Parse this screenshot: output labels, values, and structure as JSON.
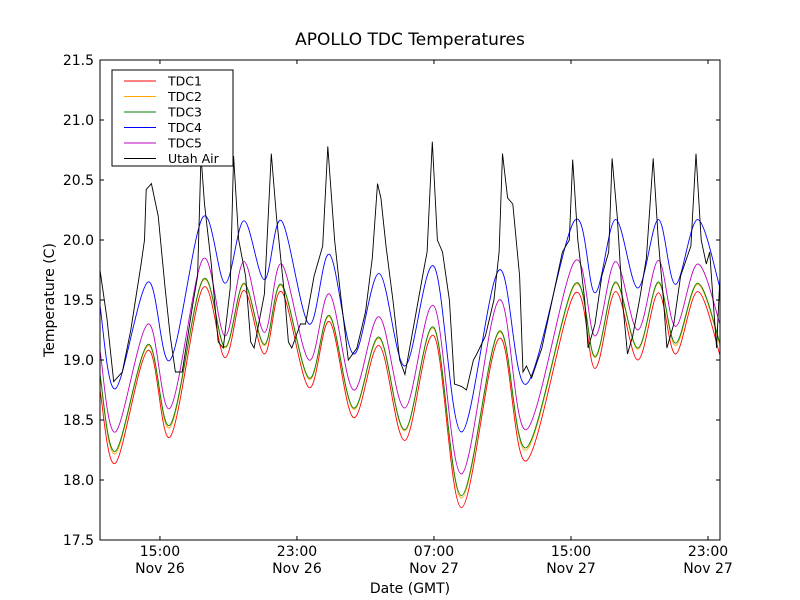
{
  "chart_data": {
    "type": "line",
    "title": "APOLLO TDC Temperatures",
    "xlabel": "Date (GMT)",
    "ylabel": "Temperature (C)",
    "x_units": "hours since Nov 26 00:00 GMT",
    "xlim": [
      11.5,
      47.7
    ],
    "ylim": [
      17.5,
      21.5
    ],
    "grid": false,
    "legend_position": "top-left",
    "yticks": [
      17.5,
      18.0,
      18.5,
      19.0,
      19.5,
      20.0,
      20.5,
      21.0,
      21.5
    ],
    "ytick_labels": [
      "17.5",
      "18.0",
      "18.5",
      "19.0",
      "19.5",
      "20.0",
      "20.5",
      "21.0",
      "21.5"
    ],
    "xticks": [
      15,
      23,
      31,
      39,
      47
    ],
    "xtick_labels": [
      {
        "time": "15:00",
        "date": "Nov 26"
      },
      {
        "time": "23:00",
        "date": "Nov 26"
      },
      {
        "time": "07:00",
        "date": "Nov 27"
      },
      {
        "time": "15:00",
        "date": "Nov 27"
      },
      {
        "time": "23:00",
        "date": "Nov 27"
      }
    ],
    "series": [
      {
        "name": "TDC1",
        "color": "#ff0000",
        "points": [
          [
            11.5,
            18.75
          ],
          [
            12.4,
            18.14
          ],
          [
            14.3,
            19.08
          ],
          [
            15.6,
            18.36
          ],
          [
            17.5,
            19.6
          ],
          [
            18.8,
            19.02
          ],
          [
            19.9,
            19.58
          ],
          [
            21.1,
            19.05
          ],
          [
            22.1,
            19.57
          ],
          [
            23.7,
            18.77
          ],
          [
            24.9,
            19.32
          ],
          [
            26.3,
            18.52
          ],
          [
            27.8,
            19.12
          ],
          [
            29.3,
            18.33
          ],
          [
            31.0,
            19.2
          ],
          [
            32.6,
            17.77
          ],
          [
            34.8,
            19.18
          ],
          [
            36.4,
            18.16
          ],
          [
            39.2,
            19.55
          ],
          [
            40.4,
            18.93
          ],
          [
            41.6,
            19.57
          ],
          [
            42.9,
            19.0
          ],
          [
            44.1,
            19.56
          ],
          [
            45.1,
            19.05
          ],
          [
            46.4,
            19.57
          ],
          [
            47.7,
            19.04
          ]
        ]
      },
      {
        "name": "TDC2",
        "color": "#ffa500",
        "points": [
          [
            11.5,
            18.86
          ],
          [
            12.4,
            18.22
          ],
          [
            14.3,
            19.12
          ],
          [
            15.6,
            18.44
          ],
          [
            17.5,
            19.66
          ],
          [
            18.8,
            19.1
          ],
          [
            19.9,
            19.63
          ],
          [
            21.1,
            19.12
          ],
          [
            22.1,
            19.62
          ],
          [
            23.7,
            18.84
          ],
          [
            24.9,
            19.36
          ],
          [
            26.3,
            18.59
          ],
          [
            27.8,
            19.18
          ],
          [
            29.3,
            18.41
          ],
          [
            31.0,
            19.26
          ],
          [
            32.6,
            17.85
          ],
          [
            34.8,
            19.23
          ],
          [
            36.4,
            18.25
          ],
          [
            39.2,
            19.62
          ],
          [
            40.4,
            19.02
          ],
          [
            41.6,
            19.64
          ],
          [
            42.9,
            19.09
          ],
          [
            44.1,
            19.64
          ],
          [
            45.1,
            19.12
          ],
          [
            46.4,
            19.63
          ],
          [
            47.7,
            19.12
          ]
        ]
      },
      {
        "name": "TDC3",
        "color": "#008000",
        "points": [
          [
            11.5,
            18.88
          ],
          [
            12.4,
            18.24
          ],
          [
            14.3,
            19.13
          ],
          [
            15.6,
            18.46
          ],
          [
            17.5,
            19.67
          ],
          [
            18.8,
            19.11
          ],
          [
            19.9,
            19.64
          ],
          [
            21.1,
            19.13
          ],
          [
            22.1,
            19.63
          ],
          [
            23.7,
            18.85
          ],
          [
            24.9,
            19.37
          ],
          [
            26.3,
            18.6
          ],
          [
            27.8,
            19.19
          ],
          [
            29.3,
            18.42
          ],
          [
            31.0,
            19.27
          ],
          [
            32.6,
            17.87
          ],
          [
            34.8,
            19.24
          ],
          [
            36.4,
            18.27
          ],
          [
            39.2,
            19.63
          ],
          [
            40.4,
            19.03
          ],
          [
            41.6,
            19.65
          ],
          [
            42.9,
            19.1
          ],
          [
            44.1,
            19.65
          ],
          [
            45.1,
            19.14
          ],
          [
            46.4,
            19.64
          ],
          [
            47.7,
            19.14
          ]
        ]
      },
      {
        "name": "TDC4",
        "color": "#0000ff",
        "points": [
          [
            11.5,
            19.45
          ],
          [
            12.4,
            18.76
          ],
          [
            14.3,
            19.65
          ],
          [
            15.6,
            19.0
          ],
          [
            17.5,
            20.19
          ],
          [
            18.8,
            19.64
          ],
          [
            19.9,
            20.16
          ],
          [
            21.1,
            19.67
          ],
          [
            22.1,
            20.16
          ],
          [
            23.7,
            19.3
          ],
          [
            24.9,
            19.88
          ],
          [
            26.3,
            19.05
          ],
          [
            27.8,
            19.72
          ],
          [
            29.3,
            18.95
          ],
          [
            31.0,
            19.78
          ],
          [
            32.6,
            18.4
          ],
          [
            34.8,
            19.75
          ],
          [
            36.4,
            18.8
          ],
          [
            39.2,
            20.16
          ],
          [
            40.4,
            19.56
          ],
          [
            41.6,
            20.17
          ],
          [
            42.9,
            19.6
          ],
          [
            44.1,
            20.17
          ],
          [
            45.1,
            19.63
          ],
          [
            46.4,
            20.17
          ],
          [
            47.7,
            19.6
          ]
        ]
      },
      {
        "name": "TDC5",
        "color": "#bf00bf",
        "points": [
          [
            11.5,
            19.08
          ],
          [
            12.4,
            18.4
          ],
          [
            14.3,
            19.3
          ],
          [
            15.6,
            18.6
          ],
          [
            17.5,
            19.84
          ],
          [
            18.8,
            19.2
          ],
          [
            19.9,
            19.82
          ],
          [
            21.1,
            19.23
          ],
          [
            22.1,
            19.8
          ],
          [
            23.7,
            19.0
          ],
          [
            24.9,
            19.55
          ],
          [
            26.3,
            18.75
          ],
          [
            27.8,
            19.36
          ],
          [
            29.3,
            18.6
          ],
          [
            31.0,
            19.45
          ],
          [
            32.6,
            18.05
          ],
          [
            34.8,
            19.5
          ],
          [
            36.4,
            18.42
          ],
          [
            39.2,
            19.82
          ],
          [
            40.4,
            19.2
          ],
          [
            41.6,
            19.82
          ],
          [
            42.9,
            19.25
          ],
          [
            44.1,
            19.83
          ],
          [
            45.1,
            19.28
          ],
          [
            46.4,
            19.8
          ],
          [
            47.7,
            19.3
          ]
        ]
      },
      {
        "name": "Utah Air",
        "color": "#000000",
        "points": [
          [
            11.5,
            19.75
          ],
          [
            11.9,
            19.35
          ],
          [
            12.3,
            18.82
          ],
          [
            12.8,
            18.9
          ],
          [
            13.3,
            19.25
          ],
          [
            13.9,
            19.8
          ],
          [
            14.1,
            20.0
          ],
          [
            14.2,
            20.42
          ],
          [
            14.5,
            20.47
          ],
          [
            14.9,
            20.2
          ],
          [
            15.3,
            19.6
          ],
          [
            15.6,
            19.2
          ],
          [
            15.9,
            18.9
          ],
          [
            16.3,
            18.9
          ],
          [
            16.9,
            19.45
          ],
          [
            17.2,
            19.7
          ],
          [
            17.4,
            20.7
          ],
          [
            17.6,
            20.3
          ],
          [
            18.0,
            19.8
          ],
          [
            18.4,
            19.15
          ],
          [
            18.7,
            19.1
          ],
          [
            19.1,
            19.6
          ],
          [
            19.3,
            20.7
          ],
          [
            19.6,
            20.0
          ],
          [
            20.0,
            19.7
          ],
          [
            20.3,
            19.15
          ],
          [
            20.5,
            19.1
          ],
          [
            21.1,
            19.55
          ],
          [
            21.5,
            20.72
          ],
          [
            21.8,
            20.2
          ],
          [
            22.3,
            19.5
          ],
          [
            22.5,
            19.15
          ],
          [
            22.7,
            19.1
          ],
          [
            23.2,
            19.3
          ],
          [
            23.5,
            19.3
          ],
          [
            24.0,
            19.7
          ],
          [
            24.5,
            19.95
          ],
          [
            24.8,
            20.78
          ],
          [
            25.2,
            20.0
          ],
          [
            25.5,
            19.6
          ],
          [
            26.0,
            19.0
          ],
          [
            26.5,
            19.1
          ],
          [
            27.0,
            19.4
          ],
          [
            27.4,
            19.85
          ],
          [
            27.7,
            20.47
          ],
          [
            27.9,
            20.35
          ],
          [
            28.2,
            19.95
          ],
          [
            28.6,
            19.5
          ],
          [
            29.0,
            19.0
          ],
          [
            29.3,
            18.88
          ],
          [
            29.9,
            19.35
          ],
          [
            30.4,
            19.75
          ],
          [
            30.6,
            19.9
          ],
          [
            30.9,
            20.82
          ],
          [
            31.2,
            20.0
          ],
          [
            31.5,
            19.9
          ],
          [
            31.9,
            19.5
          ],
          [
            32.2,
            18.8
          ],
          [
            32.6,
            18.78
          ],
          [
            32.9,
            18.75
          ],
          [
            33.3,
            19.0
          ],
          [
            33.5,
            19.05
          ],
          [
            34.0,
            19.2
          ],
          [
            34.5,
            19.5
          ],
          [
            34.8,
            19.9
          ],
          [
            35.0,
            20.72
          ],
          [
            35.3,
            20.35
          ],
          [
            35.6,
            20.3
          ],
          [
            36.0,
            19.7
          ],
          [
            36.2,
            18.9
          ],
          [
            36.4,
            18.95
          ],
          [
            36.7,
            18.85
          ],
          [
            37.3,
            19.1
          ],
          [
            37.9,
            19.5
          ],
          [
            38.5,
            19.9
          ],
          [
            38.9,
            20.0
          ],
          [
            39.1,
            20.67
          ],
          [
            39.4,
            20.0
          ],
          [
            39.8,
            19.5
          ],
          [
            40.0,
            19.1
          ],
          [
            40.4,
            19.3
          ],
          [
            40.8,
            19.7
          ],
          [
            41.2,
            19.9
          ],
          [
            41.4,
            20.68
          ],
          [
            41.7,
            20.2
          ],
          [
            42.0,
            19.5
          ],
          [
            42.3,
            19.05
          ],
          [
            42.6,
            19.2
          ],
          [
            43.0,
            19.5
          ],
          [
            43.4,
            19.85
          ],
          [
            43.8,
            20.68
          ],
          [
            44.1,
            20.0
          ],
          [
            44.4,
            19.5
          ],
          [
            44.6,
            19.1
          ],
          [
            45.0,
            19.3
          ],
          [
            45.4,
            19.7
          ],
          [
            46.0,
            19.95
          ],
          [
            46.3,
            20.72
          ],
          [
            46.6,
            20.0
          ],
          [
            46.9,
            19.8
          ],
          [
            47.1,
            19.9
          ],
          [
            47.3,
            19.5
          ],
          [
            47.5,
            19.1
          ],
          [
            47.7,
            19.7
          ]
        ]
      }
    ]
  }
}
